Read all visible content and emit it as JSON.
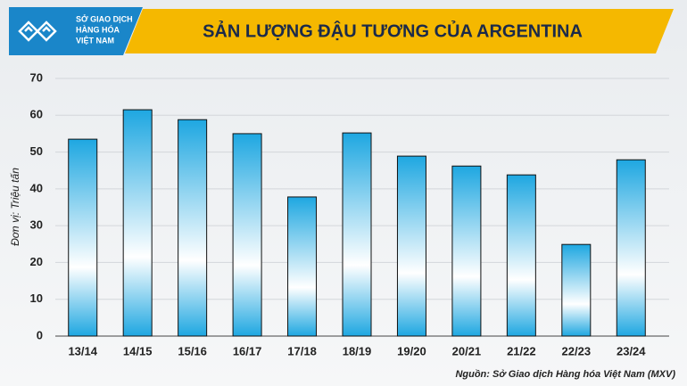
{
  "header": {
    "logo_lines": [
      "SỞ GIAO DỊCH",
      "HÀNG HÓA",
      "VIỆT NAM"
    ]
  },
  "chart_data": {
    "type": "bar",
    "title": "SẢN LƯỢNG ĐẬU TƯƠNG CỦA ARGENTINA",
    "y_label": "Đơn vị: Triệu tấn",
    "source": "Nguồn: Sở Giao dịch Hàng hóa Việt Nam (MXV)",
    "categories": [
      "13/14",
      "14/15",
      "15/16",
      "16/17",
      "17/18",
      "18/19",
      "19/20",
      "20/21",
      "21/22",
      "22/23",
      "23/24"
    ],
    "values": [
      53.5,
      61.5,
      58.8,
      55.0,
      37.8,
      55.2,
      48.9,
      46.2,
      43.8,
      24.9,
      47.9
    ],
    "color": "#1ea7e1",
    "ylim": [
      0,
      70
    ],
    "yticks": [
      0,
      10,
      20,
      30,
      40,
      50,
      60,
      70
    ],
    "grid": true
  }
}
